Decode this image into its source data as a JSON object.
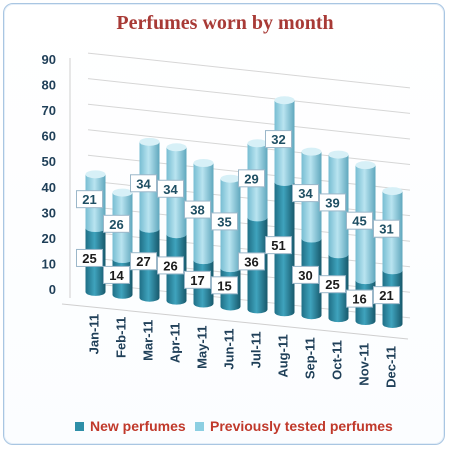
{
  "chart_data": {
    "type": "bar",
    "stacked": true,
    "style": "3d-cylinder",
    "title": "Perfumes worn by month",
    "categories": [
      "Jan-11",
      "Feb-11",
      "Mar-11",
      "Apr-11",
      "May-11",
      "Jun-11",
      "Jul-11",
      "Aug-11",
      "Sep-11",
      "Oct-11",
      "Nov-11",
      "Dec-11"
    ],
    "series": [
      {
        "name": "New perfumes",
        "color": "#2e8fa8",
        "values": [
          25,
          14,
          27,
          26,
          17,
          15,
          36,
          51,
          30,
          25,
          16,
          21
        ]
      },
      {
        "name": "Previously tested perfumes",
        "color": "#8ccfe2",
        "values": [
          21,
          26,
          34,
          34,
          38,
          35,
          29,
          32,
          34,
          39,
          45,
          31
        ]
      }
    ],
    "ylim": [
      0,
      90
    ],
    "yticks": [
      0,
      10,
      20,
      30,
      40,
      50,
      60,
      70,
      80,
      90
    ],
    "grid": true,
    "data_labels": true,
    "legend": "bottom",
    "title_color": "#a83a36",
    "legend_text_color": "#c0392b"
  }
}
